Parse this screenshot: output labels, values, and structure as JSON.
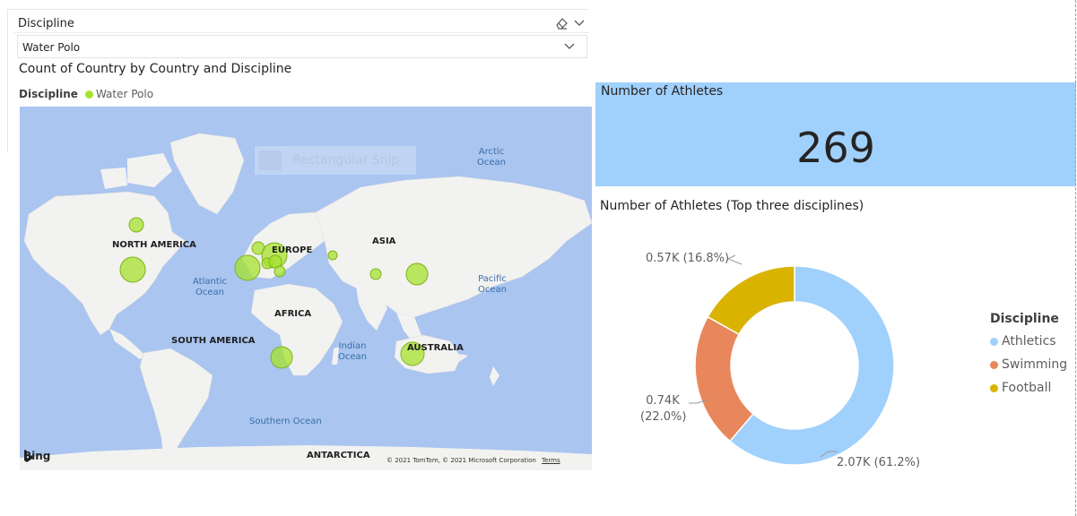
{
  "slicer": {
    "title": "Discipline",
    "selected_value": "Water Polo",
    "eraser_icon": "eraser-icon",
    "chevron_icon": "chevron-down-icon"
  },
  "map_visual": {
    "title": "Count of Country by Country and Discipline",
    "legend_title": "Discipline",
    "legend_item": "Water Polo",
    "bubble_color": "#a6e22e",
    "continent_labels": [
      "NORTH AMERICA",
      "EUROPE",
      "ASIA",
      "AFRICA",
      "SOUTH AMERICA",
      "AUSTRALIA",
      "ANTARCTICA"
    ],
    "ocean_labels": [
      "Arctic\nOcean",
      "Atlantic\nOcean",
      "Pacific\nOcean",
      "Indian\nOcean",
      "Southern Ocean"
    ],
    "provider": "Bing",
    "attribution": "© 2021 TomTom, © 2021 Microsoft Corporation",
    "terms_link": "Terms",
    "overlay_text": "Rectangular Snip"
  },
  "card": {
    "title": "Number of Athletes",
    "value": "269",
    "background": "#a0d0fc"
  },
  "donut": {
    "title": "Number of Athletes (Top three disciplines)",
    "legend_title": "Discipline"
  },
  "chart_data": {
    "type": "pie",
    "title": "Number of Athletes (Top three disciplines)",
    "legend_title": "Discipline",
    "legend_position": "right",
    "categories": [
      "Athletics",
      "Swimming",
      "Football"
    ],
    "values": [
      2070,
      740,
      570
    ],
    "percents": [
      61.2,
      22.0,
      16.8
    ],
    "colors": [
      "#a0d0fc",
      "#e8875c",
      "#d9b300"
    ],
    "data_labels": [
      "2.07K (61.2%)",
      "0.74K\n(22.0%)",
      "0.57K (16.8%)"
    ]
  }
}
